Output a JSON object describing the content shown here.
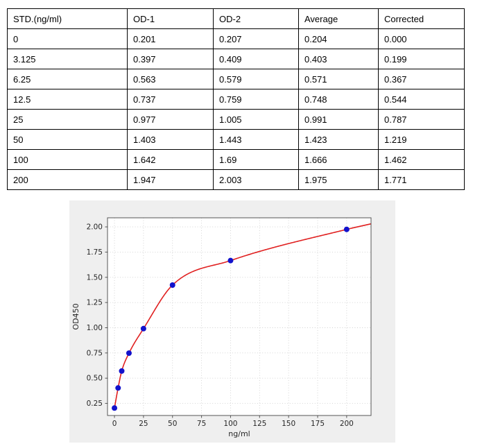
{
  "table": {
    "headers": [
      "STD.(ng/ml)",
      "OD-1",
      "OD-2",
      "Average",
      "Corrected"
    ],
    "rows": [
      [
        "0",
        "0.201",
        "0.207",
        "0.204",
        "0.000"
      ],
      [
        "3.125",
        "0.397",
        "0.409",
        "0.403",
        "0.199"
      ],
      [
        "6.25",
        "0.563",
        "0.579",
        "0.571",
        "0.367"
      ],
      [
        "12.5",
        "0.737",
        "0.759",
        "0.748",
        "0.544"
      ],
      [
        "25",
        "0.977",
        "1.005",
        "0.991",
        "0.787"
      ],
      [
        "50",
        "1.403",
        "1.443",
        "1.423",
        "1.219"
      ],
      [
        "100",
        "1.642",
        "1.69",
        "1.666",
        "1.462"
      ],
      [
        "200",
        "1.947",
        "2.003",
        "1.975",
        "1.771"
      ]
    ]
  },
  "chart_data": {
    "type": "scatter",
    "title": "",
    "xlabel": "ng/ml",
    "ylabel": "OD450",
    "x": [
      0,
      3.125,
      6.25,
      12.5,
      25,
      50,
      100,
      200
    ],
    "y": [
      0.204,
      0.403,
      0.571,
      0.748,
      0.991,
      1.423,
      1.666,
      1.975
    ],
    "fit_curve": "4PL standard curve fit through points",
    "xlim": [
      -6,
      221
    ],
    "ylim": [
      0.13,
      2.09
    ],
    "xticks": [
      0,
      25,
      50,
      75,
      100,
      125,
      150,
      175,
      200
    ],
    "yticks": [
      0.25,
      0.5,
      0.75,
      1.0,
      1.25,
      1.5,
      1.75,
      2.0
    ],
    "grid": "dotted",
    "legend": "none",
    "point_color": "#1212cc",
    "curve_color": "#e02020",
    "figure_bg": "#efefef",
    "plot_bg": "#ffffff",
    "grid_color": "#cfcfcf",
    "axis_color": "#555555"
  }
}
